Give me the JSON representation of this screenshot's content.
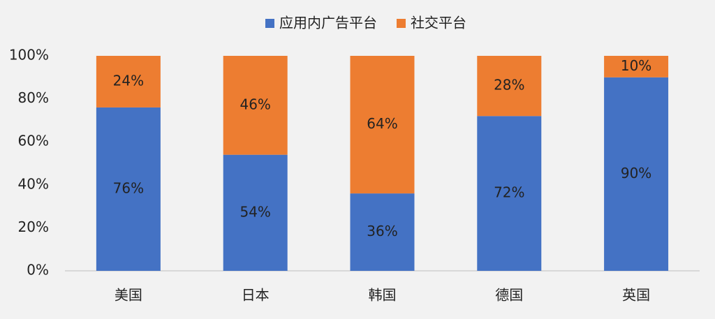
{
  "chart_data": {
    "type": "stacked_bar",
    "categories": [
      "美国",
      "日本",
      "韩国",
      "德国",
      "英国"
    ],
    "series": [
      {
        "name": "应用内广告平台",
        "color": "#4472c4",
        "values": [
          76,
          54,
          36,
          72,
          90
        ],
        "value_labels": [
          "76%",
          "54%",
          "36%",
          "72%",
          "90%"
        ]
      },
      {
        "name": "社交平台",
        "color": "#ed7d31",
        "values": [
          24,
          46,
          64,
          28,
          10
        ],
        "value_labels": [
          "24%",
          "46%",
          "64%",
          "28%",
          "10%"
        ]
      }
    ],
    "ylim": [
      0,
      100
    ],
    "yticks": [
      {
        "value": 0,
        "label": "0%"
      },
      {
        "value": 20,
        "label": "20%"
      },
      {
        "value": 40,
        "label": "40%"
      },
      {
        "value": 60,
        "label": "60%"
      },
      {
        "value": 80,
        "label": "80%"
      },
      {
        "value": 100,
        "label": "100%"
      }
    ],
    "grid": false,
    "legend": "top"
  }
}
